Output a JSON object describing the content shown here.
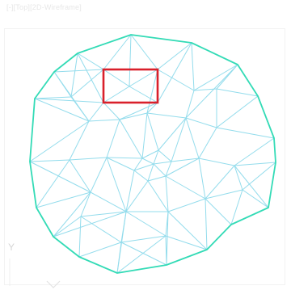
{
  "viewport": {
    "label": "[-][Top][2D-Wireframe]",
    "background": "#ffffff"
  },
  "axis": {
    "y_label": "Y"
  },
  "mesh": {
    "boundary_color": "#33dbb6",
    "edge_color": "#93dcec",
    "selection_color": "#d9202b"
  }
}
